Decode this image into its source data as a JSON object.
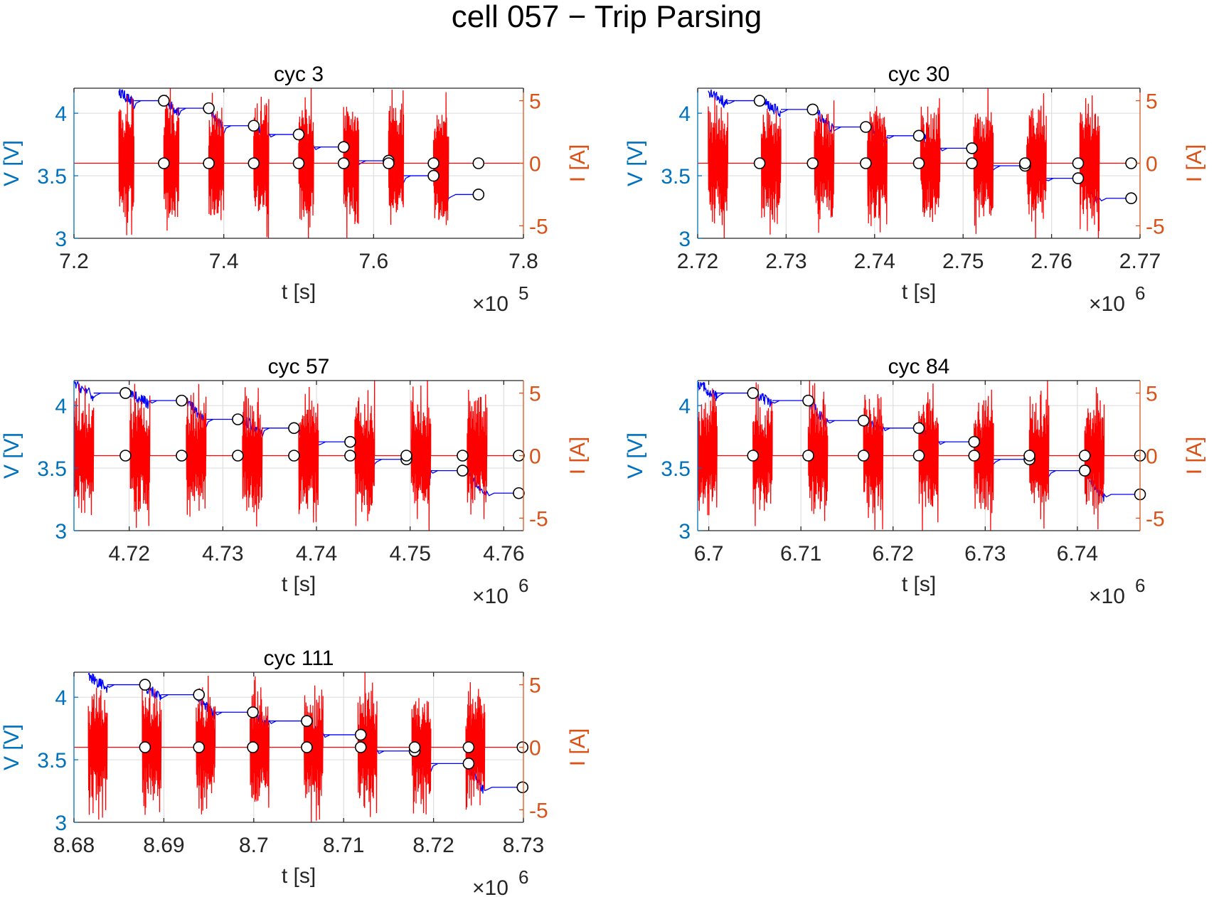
{
  "figure": {
    "title": "cell 057 − Trip Parsing"
  },
  "colors": {
    "voltage_axis": "#0072BD",
    "current_axis": "#D95319",
    "voltage_line": "#0000FF",
    "current_line": "#FF0000",
    "grid": "#DFDFDF",
    "marker_edge": "#000000",
    "marker_fill": "#FFFFFF",
    "text": "#262626"
  },
  "chart_data": [
    {
      "type": "line",
      "title": "cyc 3",
      "xlabel": "t [s]",
      "ylabel_left": "V [V]",
      "ylabel_right": "I [A]",
      "x_exponent": "×10",
      "x_exponent_power": "5",
      "xlim": [
        7.2,
        7.8
      ],
      "xticks": [
        7.2,
        7.4,
        7.6,
        7.8
      ],
      "xtick_labels": [
        "7.2",
        "7.4",
        "7.6",
        "7.8"
      ],
      "ylim_left": [
        3,
        4.2
      ],
      "yticks_left": [
        3,
        3.5,
        4
      ],
      "ytick_labels_left": [
        "3",
        "3.5",
        "4"
      ],
      "ylim_right": [
        -6,
        6
      ],
      "yticks_right": [
        -5,
        0,
        5
      ],
      "ytick_labels_right": [
        "-5",
        "0",
        "5"
      ],
      "grid": true,
      "trip_starts": [
        7.26,
        7.32,
        7.38,
        7.44,
        7.5,
        7.56,
        7.62,
        7.68
      ],
      "trip_duration": 0.02,
      "rest_voltages": [
        4.1,
        4.04,
        3.9,
        3.83,
        3.73,
        3.62,
        3.5,
        3.35
      ],
      "series": [
        {
          "name": "V markers",
          "axis": "left",
          "x": [
            7.32,
            7.38,
            7.44,
            7.5,
            7.56,
            7.62,
            7.68,
            7.74
          ],
          "y": [
            4.1,
            4.04,
            3.9,
            3.83,
            3.73,
            3.62,
            3.5,
            3.35
          ]
        },
        {
          "name": "I markers",
          "axis": "right",
          "x": [
            7.32,
            7.38,
            7.44,
            7.5,
            7.56,
            7.62,
            7.68,
            7.74
          ],
          "y": [
            0,
            0,
            0,
            0,
            0,
            0,
            0,
            0
          ]
        }
      ]
    },
    {
      "type": "line",
      "title": "cyc 30",
      "xlabel": "t [s]",
      "ylabel_left": "V [V]",
      "ylabel_right": "I [A]",
      "x_exponent": "×10",
      "x_exponent_power": "6",
      "xlim": [
        2.72,
        2.77
      ],
      "xticks": [
        2.72,
        2.73,
        2.74,
        2.75,
        2.76,
        2.77
      ],
      "xtick_labels": [
        "2.72",
        "2.73",
        "2.74",
        "2.75",
        "2.76",
        "2.77"
      ],
      "ylim_left": [
        3,
        4.2
      ],
      "yticks_left": [
        3,
        3.5,
        4
      ],
      "ytick_labels_left": [
        "3",
        "3.5",
        "4"
      ],
      "ylim_right": [
        -6,
        6
      ],
      "yticks_right": [
        -5,
        0,
        5
      ],
      "ytick_labels_right": [
        "-5",
        "0",
        "5"
      ],
      "grid": true,
      "trip_starts": [
        2.7212,
        2.7272,
        2.7332,
        2.7392,
        2.7452,
        2.7512,
        2.7572,
        2.7632
      ],
      "trip_duration": 0.0022,
      "rest_voltages": [
        4.1,
        4.03,
        3.89,
        3.82,
        3.72,
        3.58,
        3.48,
        3.32
      ],
      "series": [
        {
          "name": "V markers",
          "axis": "left",
          "x": [
            2.727,
            2.733,
            2.739,
            2.745,
            2.751,
            2.757,
            2.763,
            2.769
          ],
          "y": [
            4.1,
            4.03,
            3.89,
            3.82,
            3.72,
            3.58,
            3.48,
            3.32
          ]
        },
        {
          "name": "I markers",
          "axis": "right",
          "x": [
            2.727,
            2.733,
            2.739,
            2.745,
            2.751,
            2.757,
            2.763,
            2.769
          ],
          "y": [
            0,
            0,
            0,
            0,
            0,
            0,
            0,
            0
          ]
        }
      ]
    },
    {
      "type": "line",
      "title": "cyc 57",
      "xlabel": "t [s]",
      "ylabel_left": "V [V]",
      "ylabel_right": "I [A]",
      "x_exponent": "×10",
      "x_exponent_power": "6",
      "xlim": [
        4.7141,
        4.7621
      ],
      "xticks": [
        4.72,
        4.73,
        4.74,
        4.75,
        4.76
      ],
      "xtick_labels": [
        "4.72",
        "4.73",
        "4.74",
        "4.75",
        "4.76"
      ],
      "ylim_left": [
        3,
        4.2
      ],
      "yticks_left": [
        3,
        3.5,
        4
      ],
      "ytick_labels_left": [
        "3",
        "3.5",
        "4"
      ],
      "ylim_right": [
        -6,
        6
      ],
      "yticks_right": [
        -5,
        0,
        5
      ],
      "ytick_labels_right": [
        "-5",
        "0",
        "5"
      ],
      "grid": true,
      "trip_starts": [
        4.7141,
        4.7201,
        4.7261,
        4.7321,
        4.7381,
        4.7441,
        4.7501,
        4.7561
      ],
      "trip_duration": 0.0021,
      "rest_voltages": [
        4.1,
        4.04,
        3.89,
        3.82,
        3.71,
        3.57,
        3.48,
        3.3
      ],
      "series": [
        {
          "name": "V markers",
          "axis": "left",
          "x": [
            4.7196,
            4.7256,
            4.7316,
            4.7376,
            4.7436,
            4.7496,
            4.7556,
            4.7616
          ],
          "y": [
            4.1,
            4.04,
            3.89,
            3.82,
            3.71,
            3.57,
            3.48,
            3.3
          ]
        },
        {
          "name": "I markers",
          "axis": "right",
          "x": [
            4.7196,
            4.7256,
            4.7316,
            4.7376,
            4.7436,
            4.7496,
            4.7556,
            4.7616
          ],
          "y": [
            0,
            0,
            0,
            0,
            0,
            0,
            0,
            0
          ]
        }
      ]
    },
    {
      "type": "line",
      "title": "cyc 84",
      "xlabel": "t [s]",
      "ylabel_left": "V [V]",
      "ylabel_right": "I [A]",
      "x_exponent": "×10",
      "x_exponent_power": "6",
      "xlim": [
        6.6988,
        6.7468
      ],
      "xticks": [
        6.7,
        6.71,
        6.72,
        6.73,
        6.74
      ],
      "xtick_labels": [
        "6.7",
        "6.71",
        "6.72",
        "6.73",
        "6.74"
      ],
      "ylim_left": [
        3,
        4.2
      ],
      "yticks_left": [
        3,
        3.5,
        4
      ],
      "ytick_labels_left": [
        "3",
        "3.5",
        "4"
      ],
      "ylim_right": [
        -6,
        6
      ],
      "yticks_right": [
        -5,
        0,
        5
      ],
      "ytick_labels_right": [
        "-5",
        "0",
        "5"
      ],
      "grid": true,
      "trip_starts": [
        6.6988,
        6.7048,
        6.7108,
        6.7168,
        6.7228,
        6.7288,
        6.7348,
        6.7408
      ],
      "trip_duration": 0.0021,
      "rest_voltages": [
        4.1,
        4.04,
        3.88,
        3.82,
        3.71,
        3.57,
        3.48,
        3.29
      ],
      "series": [
        {
          "name": "V markers",
          "axis": "left",
          "x": [
            6.7048,
            6.7108,
            6.7168,
            6.7228,
            6.7288,
            6.7348,
            6.7408,
            6.7468
          ],
          "y": [
            4.1,
            4.04,
            3.88,
            3.82,
            3.71,
            3.57,
            3.48,
            3.29
          ]
        },
        {
          "name": "I markers",
          "axis": "right",
          "x": [
            6.7048,
            6.7108,
            6.7168,
            6.7228,
            6.7288,
            6.7348,
            6.7408,
            6.7468
          ],
          "y": [
            0,
            0,
            0,
            0,
            0,
            0,
            0,
            0
          ]
        }
      ]
    },
    {
      "type": "line",
      "title": "cyc 111",
      "xlabel": "t [s]",
      "ylabel_left": "V [V]",
      "ylabel_right": "I [A]",
      "x_exponent": "×10",
      "x_exponent_power": "6",
      "xlim": [
        8.68,
        8.73
      ],
      "xticks": [
        8.68,
        8.69,
        8.7,
        8.71,
        8.72,
        8.73
      ],
      "xtick_labels": [
        "8.68",
        "8.69",
        "8.7",
        "8.71",
        "8.72",
        "8.73"
      ],
      "ylim_left": [
        3,
        4.2
      ],
      "yticks_left": [
        3,
        3.5,
        4
      ],
      "ytick_labels_left": [
        "3",
        "3.5",
        "4"
      ],
      "ylim_right": [
        -6,
        6
      ],
      "yticks_right": [
        -5,
        0,
        5
      ],
      "ytick_labels_right": [
        "-5",
        "0",
        "5"
      ],
      "grid": true,
      "trip_starts": [
        8.6816,
        8.6876,
        8.6936,
        8.6996,
        8.7056,
        8.7116,
        8.7176,
        8.7236
      ],
      "trip_duration": 0.0021,
      "rest_voltages": [
        4.1,
        4.02,
        3.88,
        3.81,
        3.7,
        3.57,
        3.47,
        3.28
      ],
      "series": [
        {
          "name": "V markers",
          "axis": "left",
          "x": [
            8.6879,
            8.6939,
            8.6999,
            8.7059,
            8.7119,
            8.7179,
            8.7239,
            8.7299
          ],
          "y": [
            4.1,
            4.02,
            3.88,
            3.81,
            3.7,
            3.57,
            3.47,
            3.28
          ]
        },
        {
          "name": "I markers",
          "axis": "right",
          "x": [
            8.6879,
            8.6939,
            8.6999,
            8.7059,
            8.7119,
            8.7179,
            8.7239,
            8.7299
          ],
          "y": [
            0,
            0,
            0,
            0,
            0,
            0,
            0,
            0
          ]
        }
      ]
    }
  ]
}
